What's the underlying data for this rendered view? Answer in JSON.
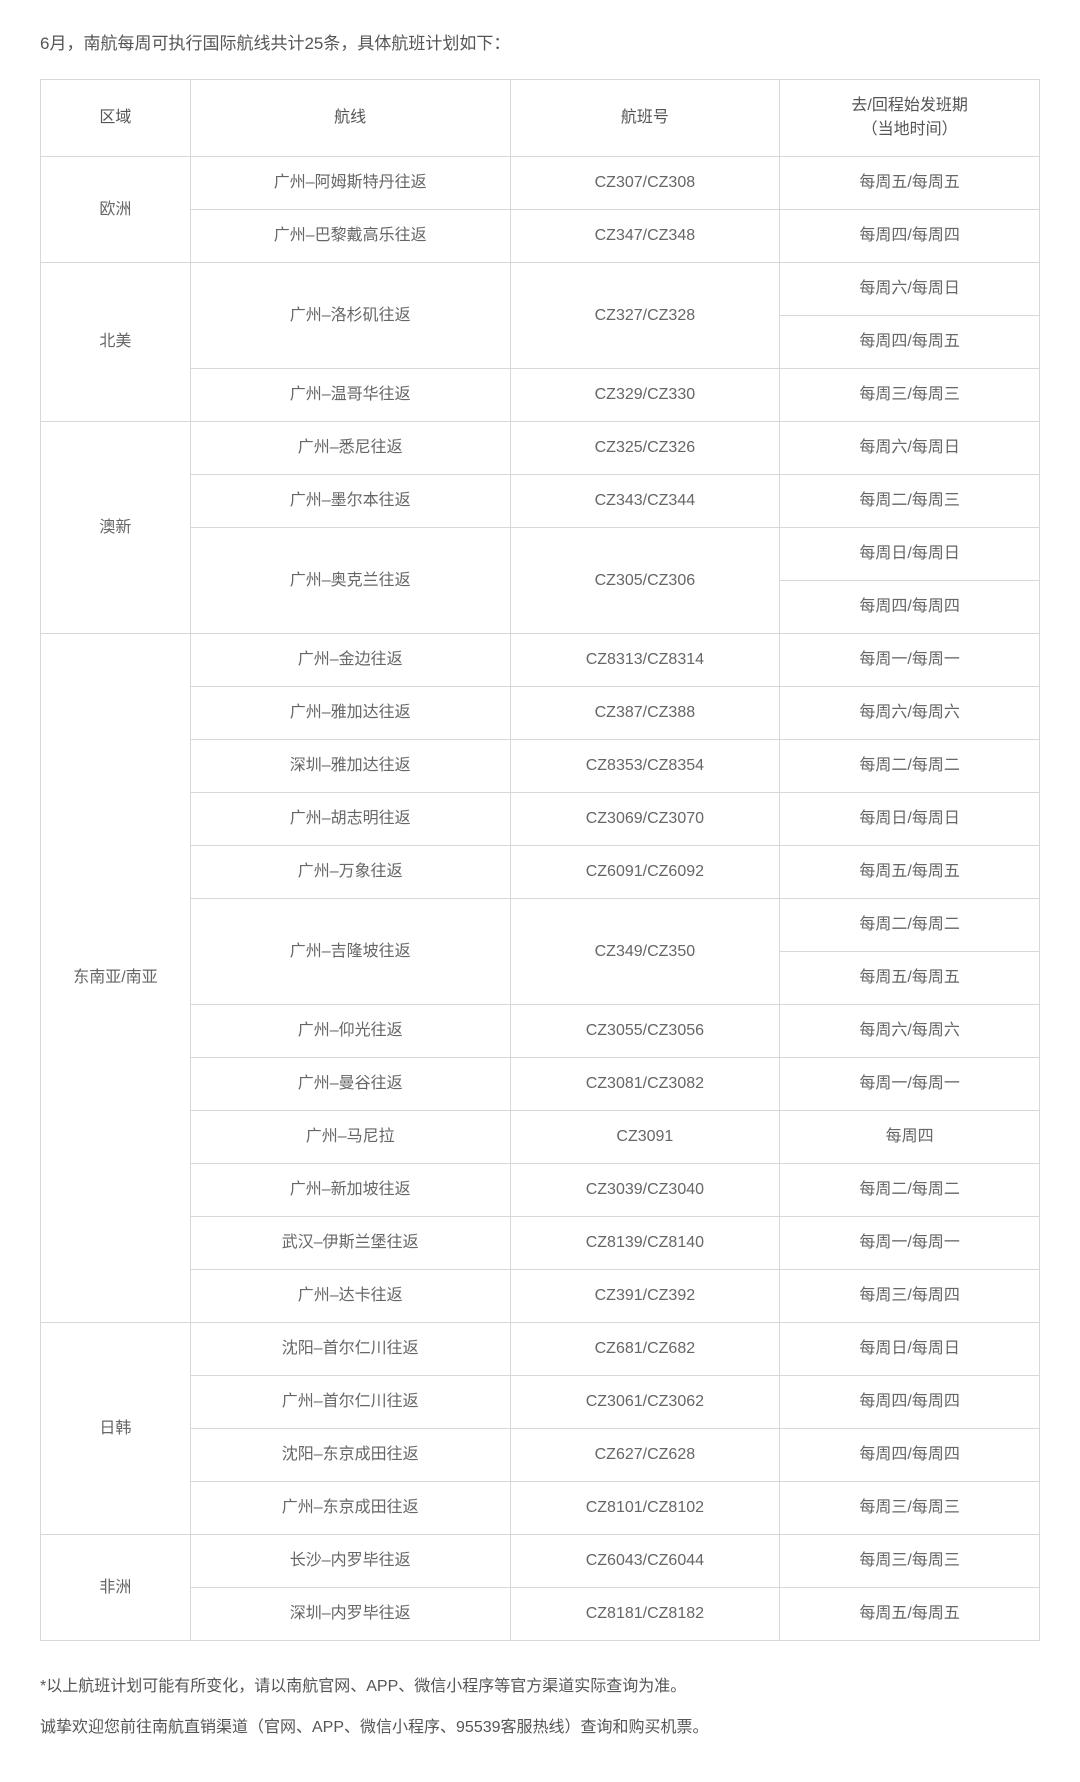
{
  "intro": "6月，南航每周可执行国际航线共计25条，具体航班计划如下：",
  "headers": {
    "region": "区域",
    "route": "航线",
    "flight": "航班号",
    "sched_line1": "去/回程始发班期",
    "sched_line2": "（当地时间）"
  },
  "rows": [
    {
      "region": "欧洲",
      "region_rowspan": 2,
      "route": "广州–阿姆斯特丹往返",
      "route_rowspan": 1,
      "flight": "CZ307/CZ308",
      "flight_rowspan": 1,
      "sched": "每周五/每周五"
    },
    {
      "route": "广州–巴黎戴高乐往返",
      "route_rowspan": 1,
      "flight": "CZ347/CZ348",
      "flight_rowspan": 1,
      "sched": "每周四/每周四"
    },
    {
      "region": "北美",
      "region_rowspan": 3,
      "route": "广州–洛杉矶往返",
      "route_rowspan": 2,
      "flight": "CZ327/CZ328",
      "flight_rowspan": 2,
      "sched": "每周六/每周日"
    },
    {
      "sched": "每周四/每周五"
    },
    {
      "route": "广州–温哥华往返",
      "route_rowspan": 1,
      "flight": "CZ329/CZ330",
      "flight_rowspan": 1,
      "sched": "每周三/每周三"
    },
    {
      "region": "澳新",
      "region_rowspan": 4,
      "route": "广州–悉尼往返",
      "route_rowspan": 1,
      "flight": "CZ325/CZ326",
      "flight_rowspan": 1,
      "sched": "每周六/每周日"
    },
    {
      "route": "广州–墨尔本往返",
      "route_rowspan": 1,
      "flight": "CZ343/CZ344",
      "flight_rowspan": 1,
      "sched": "每周二/每周三"
    },
    {
      "route": "广州–奥克兰往返",
      "route_rowspan": 2,
      "flight": "CZ305/CZ306",
      "flight_rowspan": 2,
      "sched": "每周日/每周日"
    },
    {
      "sched": "每周四/每周四"
    },
    {
      "region": "东南亚/南亚",
      "region_rowspan": 13,
      "route": "广州–金边往返",
      "route_rowspan": 1,
      "flight": "CZ8313/CZ8314",
      "flight_rowspan": 1,
      "sched": "每周一/每周一"
    },
    {
      "route": "广州–雅加达往返",
      "route_rowspan": 1,
      "flight": "CZ387/CZ388",
      "flight_rowspan": 1,
      "sched": "每周六/每周六"
    },
    {
      "route": "深圳–雅加达往返",
      "route_rowspan": 1,
      "flight": "CZ8353/CZ8354",
      "flight_rowspan": 1,
      "sched": "每周二/每周二"
    },
    {
      "route": "广州–胡志明往返",
      "route_rowspan": 1,
      "flight": "CZ3069/CZ3070",
      "flight_rowspan": 1,
      "sched": "每周日/每周日"
    },
    {
      "route": "广州–万象往返",
      "route_rowspan": 1,
      "flight": "CZ6091/CZ6092",
      "flight_rowspan": 1,
      "sched": "每周五/每周五"
    },
    {
      "route": "广州–吉隆坡往返",
      "route_rowspan": 2,
      "flight": "CZ349/CZ350",
      "flight_rowspan": 2,
      "sched": "每周二/每周二"
    },
    {
      "sched": "每周五/每周五"
    },
    {
      "route": "广州–仰光往返",
      "route_rowspan": 1,
      "flight": "CZ3055/CZ3056",
      "flight_rowspan": 1,
      "sched": "每周六/每周六"
    },
    {
      "route": "广州–曼谷往返",
      "route_rowspan": 1,
      "flight": "CZ3081/CZ3082",
      "flight_rowspan": 1,
      "sched": "每周一/每周一"
    },
    {
      "route": "广州–马尼拉",
      "route_rowspan": 1,
      "flight": "CZ3091",
      "flight_rowspan": 1,
      "sched": "每周四"
    },
    {
      "route": "广州–新加坡往返",
      "route_rowspan": 1,
      "flight": "CZ3039/CZ3040",
      "flight_rowspan": 1,
      "sched": "每周二/每周二"
    },
    {
      "route": "武汉–伊斯兰堡往返",
      "route_rowspan": 1,
      "flight": "CZ8139/CZ8140",
      "flight_rowspan": 1,
      "sched": "每周一/每周一"
    },
    {
      "route": "广州–达卡往返",
      "route_rowspan": 1,
      "flight": "CZ391/CZ392",
      "flight_rowspan": 1,
      "sched": "每周三/每周四"
    },
    {
      "region": "日韩",
      "region_rowspan": 4,
      "route": "沈阳–首尔仁川往返",
      "route_rowspan": 1,
      "flight": "CZ681/CZ682",
      "flight_rowspan": 1,
      "sched": "每周日/每周日"
    },
    {
      "route": "广州–首尔仁川往返",
      "route_rowspan": 1,
      "flight": "CZ3061/CZ3062",
      "flight_rowspan": 1,
      "sched": "每周四/每周四"
    },
    {
      "route": "沈阳–东京成田往返",
      "route_rowspan": 1,
      "flight": "CZ627/CZ628",
      "flight_rowspan": 1,
      "sched": "每周四/每周四"
    },
    {
      "route": "广州–东京成田往返",
      "route_rowspan": 1,
      "flight": "CZ8101/CZ8102",
      "flight_rowspan": 1,
      "sched": "每周三/每周三"
    },
    {
      "region": "非洲",
      "region_rowspan": 2,
      "route": "长沙–内罗毕往返",
      "route_rowspan": 1,
      "flight": "CZ6043/CZ6044",
      "flight_rowspan": 1,
      "sched": "每周三/每周三"
    },
    {
      "route": "深圳–内罗毕往返",
      "route_rowspan": 1,
      "flight": "CZ8181/CZ8182",
      "flight_rowspan": 1,
      "sched": "每周五/每周五"
    }
  ],
  "note1": "*以上航班计划可能有所变化，请以南航官网、APP、微信小程序等官方渠道实际查询为准。",
  "note2": "诚挚欢迎您前往南航直销渠道（官网、APP、微信小程序、95539客服热线）查询和购买机票。",
  "style": {
    "border_color": "#d8d8d8",
    "text_color": "#555",
    "cell_text_color": "#666",
    "background": "#ffffff",
    "base_fontsize": 16
  }
}
